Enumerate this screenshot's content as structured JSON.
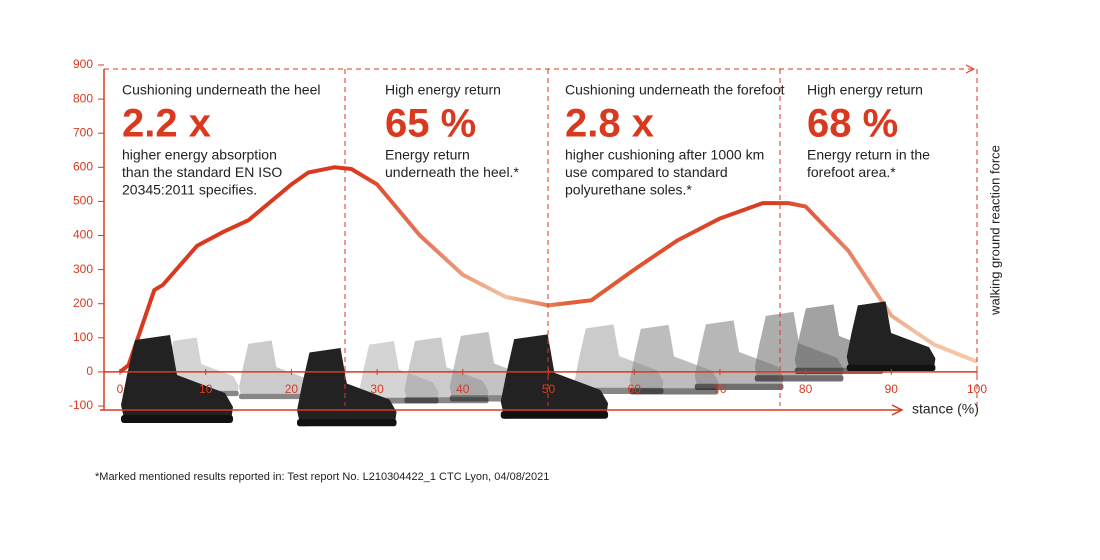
{
  "chart_data": {
    "type": "line",
    "y_label": "walking ground reaction force",
    "x_label": "stance (%)",
    "x": [
      0,
      1,
      4,
      5,
      9,
      12,
      15,
      20,
      22,
      25,
      27,
      30,
      35,
      40,
      45,
      50,
      55,
      60,
      65,
      70,
      75,
      78,
      80,
      85,
      90,
      95,
      100
    ],
    "series": [
      {
        "color": "#d9391f",
        "values": [
          0,
          20,
          240,
          255,
          370,
          410,
          445,
          550,
          585,
          600,
          595,
          550,
          400,
          285,
          220,
          195,
          210,
          300,
          385,
          450,
          495,
          495,
          485,
          355,
          165,
          80,
          30
        ]
      }
    ],
    "xlim": [
      0,
      100
    ],
    "ylim": [
      -100,
      900
    ],
    "xticks": [
      0,
      10,
      20,
      30,
      40,
      50,
      60,
      70,
      80,
      90,
      100
    ],
    "yticks": [
      -100,
      0,
      100,
      200,
      300,
      400,
      500,
      600,
      700,
      800,
      900
    ],
    "annotations": [
      {
        "heading": "Cushioning underneath the heel",
        "value": "2.2 x",
        "text": [
          "higher energy absorption",
          "than the standard EN ISO",
          "20345:2011 specifies."
        ]
      },
      {
        "heading": "High energy return",
        "value": "65 %",
        "text": [
          "Energy return",
          "underneath the heel.*"
        ]
      },
      {
        "heading": "Cushioning underneath the forefoot",
        "value": "2.8 x",
        "text": [
          "higher cushioning after 1000 km",
          "use compared to standard",
          "polyurethane soles.*"
        ]
      },
      {
        "heading": "High energy return",
        "value": "68 %",
        "text": [
          "Energy return in the",
          "forefoot area.*"
        ]
      }
    ],
    "footnote": "*Marked mentioned results reported in: Test report No. L210304422_1 CTC Lyon, 04/08/2021"
  }
}
